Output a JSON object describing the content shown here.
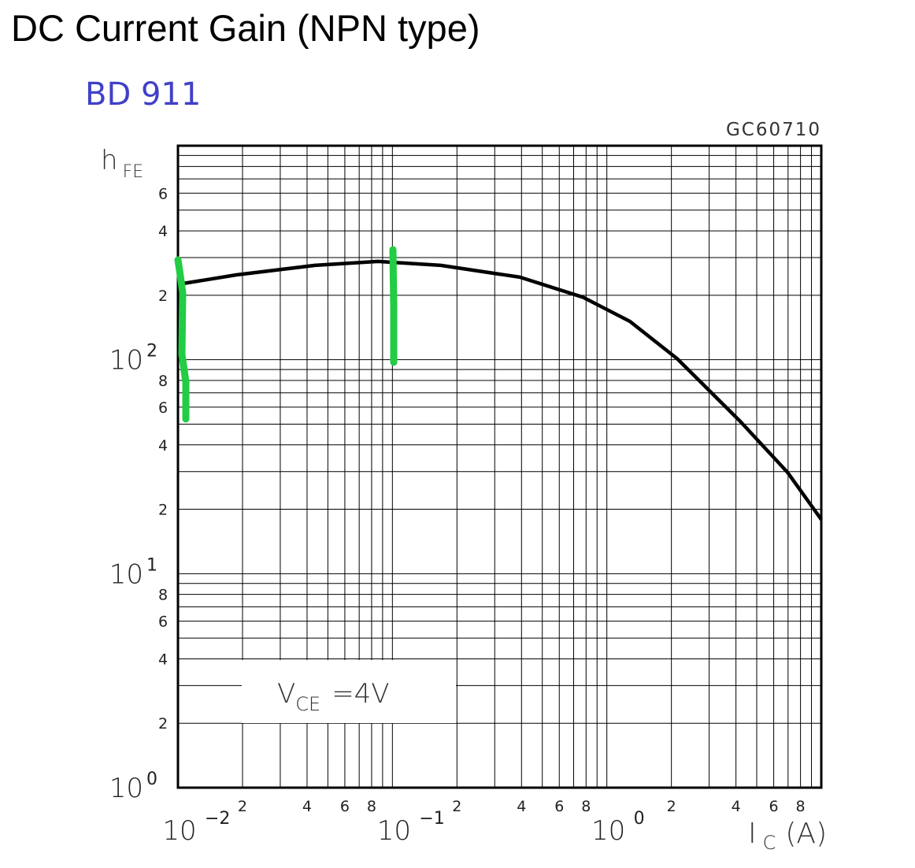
{
  "chart_data": {
    "type": "line",
    "title": "DC Current Gain (NPN type)",
    "subtitle": "BD 911",
    "code": "GC60710",
    "x_label": {
      "text": "I",
      "subscript": "C",
      "suffix": "(A)"
    },
    "y_label": {
      "text": "h",
      "subscript": "FE"
    },
    "annotation": {
      "text": "V",
      "subscript": "CE",
      "suffix": "=4V"
    },
    "log_x": true,
    "log_y": true,
    "grid": true,
    "xlim": [
      0.01,
      10
    ],
    "ylim": [
      1,
      1000
    ],
    "xticks": [
      {
        "value": 0.01,
        "label": "10",
        "exponent": "−2"
      },
      {
        "value": 0.02,
        "label": "2"
      },
      {
        "value": 0.04,
        "label": "4"
      },
      {
        "value": 0.06,
        "label": "6"
      },
      {
        "value": 0.08,
        "label": "8"
      },
      {
        "value": 0.1,
        "label": "10",
        "exponent": "−1"
      },
      {
        "value": 0.2,
        "label": "2"
      },
      {
        "value": 0.4,
        "label": "4"
      },
      {
        "value": 0.6,
        "label": "6"
      },
      {
        "value": 0.8,
        "label": "8"
      },
      {
        "value": 1,
        "label": "10",
        "exponent": "0"
      },
      {
        "value": 2,
        "label": "2"
      },
      {
        "value": 4,
        "label": "4"
      },
      {
        "value": 6,
        "label": "6"
      },
      {
        "value": 8,
        "label": "8"
      }
    ],
    "x_minor_ticks": [
      0.03,
      0.05,
      0.07,
      0.09,
      0.3,
      0.5,
      0.7,
      0.9,
      3,
      5,
      7,
      9,
      10
    ],
    "yticks": [
      {
        "value": 1,
        "label": "10",
        "exponent": "0"
      },
      2,
      4,
      6,
      8,
      {
        "value": 10,
        "label": "10",
        "exponent": "1"
      },
      {
        "value": 20,
        "label": "2"
      },
      {
        "value": 40,
        "label": "4"
      },
      {
        "value": 60,
        "label": "6"
      },
      {
        "value": 80,
        "label": "8"
      },
      {
        "value": 100,
        "label": "10",
        "exponent": "2"
      },
      {
        "value": 200,
        "label": "2"
      },
      {
        "value": 400,
        "label": "4"
      },
      {
        "value": 600,
        "label": "6"
      }
    ],
    "y_minor_ticks": [
      3,
      5,
      7,
      9,
      30,
      50,
      70,
      90,
      300,
      500,
      700,
      800,
      900,
      1000
    ],
    "x": [
      0.0106,
      0.0187,
      0.0435,
      0.0857,
      0.168,
      0.393,
      0.773,
      1.28,
      2.13,
      4.19,
      6.97,
      10
    ],
    "series": [
      {
        "color": "#000000",
        "values": [
          227,
          249,
          276,
          288,
          276,
          243,
          196,
          151,
          101,
          51.5,
          29.7,
          17.9
        ]
      }
    ]
  }
}
